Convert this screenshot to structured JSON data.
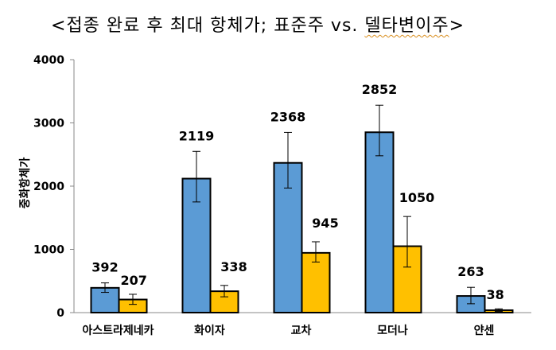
{
  "title_parts": {
    "before": "<접종 완료 후 최대 항체가; 표준주 vs. ",
    "underlined": "델타변이주",
    "after": ">"
  },
  "chart_data": {
    "type": "bar",
    "title": "<접종 완료 후 최대 항체가; 표준주 vs. 델타변이주>",
    "ylabel": "중화항체가",
    "xlabel": "",
    "ylim": [
      0,
      4000
    ],
    "yticks": [
      0,
      1000,
      2000,
      3000,
      4000
    ],
    "grid": false,
    "legend": "none",
    "categories": [
      "아스트라제네카",
      "화이자",
      "교차",
      "모더나",
      "얀센"
    ],
    "series": [
      {
        "color": "#5b9bd5",
        "values": [
          392,
          2119,
          2368,
          2852,
          263
        ],
        "error_low": [
          320,
          1750,
          1970,
          2480,
          140
        ],
        "error_high": [
          470,
          2550,
          2850,
          3280,
          400
        ]
      },
      {
        "color": "#ffc000",
        "values": [
          207,
          338,
          945,
          1050,
          38
        ],
        "error_low": [
          130,
          250,
          800,
          720,
          20
        ],
        "error_high": [
          290,
          430,
          1120,
          1520,
          60
        ]
      }
    ]
  }
}
